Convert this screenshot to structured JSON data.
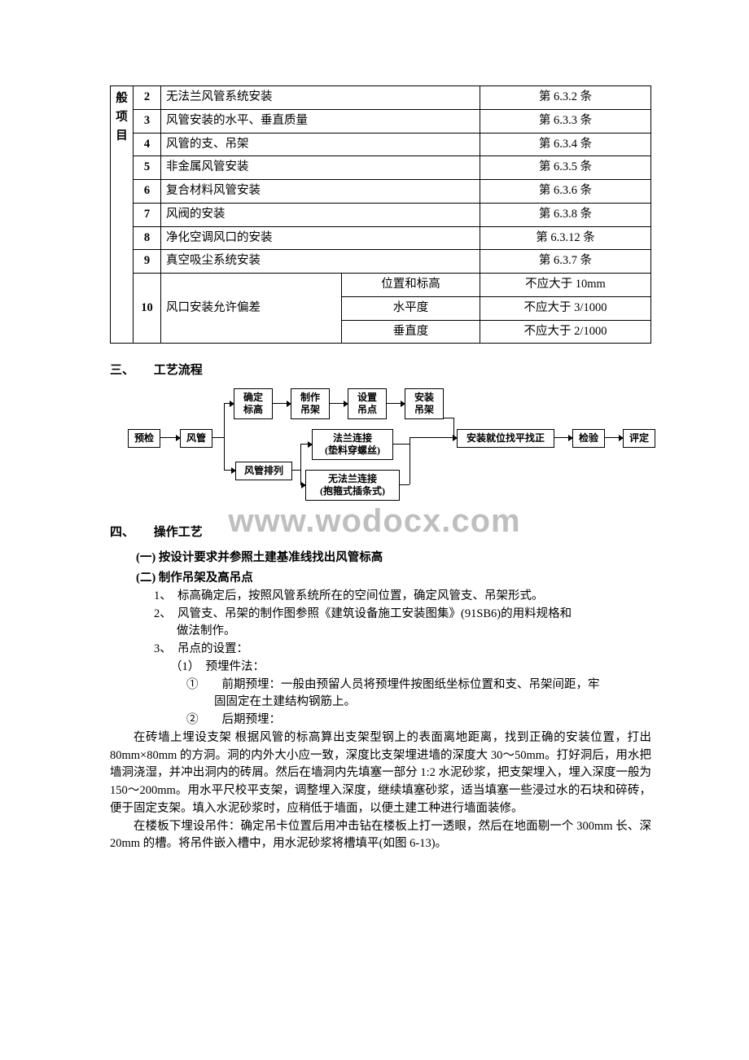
{
  "table": {
    "side_label": "般项目",
    "rows": [
      {
        "n": "2",
        "item": "无法兰风管系统安装",
        "ref": "第 6.3.2 条"
      },
      {
        "n": "3",
        "item": "风管安装的水平、垂直质量",
        "ref": "第 6.3.3 条"
      },
      {
        "n": "4",
        "item": "风管的支、吊架",
        "ref": "第 6.3.4 条"
      },
      {
        "n": "5",
        "item": "非金属风管安装",
        "ref": "第 6.3.5 条"
      },
      {
        "n": "6",
        "item": "复合材料风管安装",
        "ref": "第 6.3.6 条"
      },
      {
        "n": "7",
        "item": "风阀的安装",
        "ref": "第 6.3.8 条"
      },
      {
        "n": "8",
        "item": "净化空调风口的安装",
        "ref": "第 6.3.12 条"
      },
      {
        "n": "9",
        "item": "真空吸尘系统安装",
        "ref": "第 6.3.7 条"
      }
    ],
    "row10": {
      "n": "10",
      "item": "风口安装允许偏差",
      "subs": [
        {
          "k": "位置和标高",
          "v": "不应大于 10mm"
        },
        {
          "k": "水平度",
          "v": "不应大于 3/1000"
        },
        {
          "k": "垂直度",
          "v": "不应大于 2/1000"
        }
      ]
    }
  },
  "sec3": {
    "num": "三、",
    "title": "工艺流程"
  },
  "flow": {
    "yujian": "预检",
    "fengguan": "风管",
    "queding": "确定\n标高",
    "zhizuo": "制作\n吊架",
    "shezhi": "设置\n吊点",
    "anzhuang": "安装\n吊架",
    "pailie": "风管排列",
    "falan": "法兰连接\n(垫料穿螺丝)",
    "wufalan": "无法兰连接\n(抱箍式插条式)",
    "jiuwei": "安装就位找平找正",
    "jianyan": "检验",
    "pingding": "评定"
  },
  "watermark": "www.wodocx.com",
  "sec4": {
    "num": "四、",
    "title": "操作工艺",
    "sub1": "(一) 按设计要求并参照土建基准线找出风管标高",
    "sub2": "(二) 制作吊架及高吊点",
    "li1_1": "1、　标高确定后，按照风管系统所在的空间位置，确定风管支、吊架形式。",
    "li1_2a": "2、　风管支、吊架的制作图参照《建筑设备施工安装图集》(91SB6)的用料规格和",
    "li1_2b": "做法制作。",
    "li1_3": "3、　吊点的设置：",
    "li2_1": "（1）　预埋件法：",
    "li3_1a": "①　　前期预埋：一般由预留人员将预埋件按图纸坐标位置和支、吊架间距，牢",
    "li3_1b": "固固定在土建结构钢筋上。",
    "li3_2": "②　　后期预埋：",
    "p1": "在砖墙上埋设支架 根据风管的标高算出支架型钢上的表面离地距离，找到正确的安装位置，打出 80mm×80mm 的方洞。洞的内外大小应一致，深度比支架埋进墙的深度大 30～50mm。打好洞后，用水把墙洞浇湿，并冲出洞内的砖屑。然后在墙洞内先填塞一部分 1:2 水泥砂浆，把支架埋入，埋入深度一般为 150～200mm。用水平尺校平支架，调整埋入深度，继续填塞砂浆，适当填塞一些浸过水的石块和碎砖，便于固定支架。填入水泥砂浆时，应稍低于墙面，以便土建工种进行墙面装修。",
    "p2": "在楼板下埋设吊件：确定吊卡位置后用冲击钻在楼板上打一透眼，然后在地面剔一个 300mm 长、深 20mm 的槽。将吊件嵌入槽中，用水泥砂浆将槽填平(如图 6-13)。"
  }
}
